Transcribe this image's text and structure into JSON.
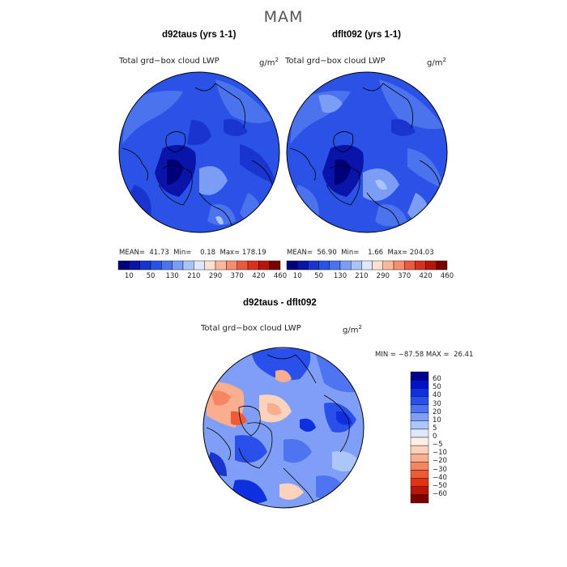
{
  "figure": {
    "title": "MAM"
  },
  "panels": [
    {
      "case_title": "d92taus (yrs 1-1)",
      "var_label": "Total grd−box cloud LWP",
      "units": "g/m",
      "units_exp": "2",
      "stats": "MEAN=  41.73  Min=    0.18  Max= 178.19"
    },
    {
      "case_title": "dflt092 (yrs 1-1)",
      "var_label": "Total grd−box cloud LWP",
      "units": "g/m",
      "units_exp": "2",
      "stats": "MEAN=  56.90  Min=    1.66  Max= 204.03"
    }
  ],
  "colorbar_abs": {
    "colors": [
      "#00007a",
      "#0a14a8",
      "#1a34d0",
      "#2a52e6",
      "#4b73ee",
      "#7b9df5",
      "#aac4fa",
      "#dde8fd",
      "#fde2d4",
      "#f9b79c",
      "#f58d6e",
      "#ea5a3f",
      "#d8311d",
      "#b81608",
      "#7a0000"
    ],
    "tick_labels": [
      "10",
      "50",
      "130",
      "210",
      "290",
      "370",
      "420",
      "460"
    ]
  },
  "diff_panel": {
    "case_title": "d92taus - dflt092",
    "var_label": "Total grd−box cloud LWP",
    "units": "g/m",
    "units_exp": "2",
    "stats": "MIN = −87.58 MAX =  26.41"
  },
  "colorbar_diff": {
    "colors": [
      "#000090",
      "#0012c8",
      "#0f30e0",
      "#2a50ec",
      "#4f74f2",
      "#7f9ff6",
      "#adc6fa",
      "#dbe8fe",
      "#fdf1e6",
      "#fbd3bd",
      "#f8ae8f",
      "#f58662",
      "#f05b37",
      "#e03214",
      "#b81608",
      "#7d0000"
    ],
    "labels": [
      "60",
      "50",
      "40",
      "30",
      "20",
      "10",
      "5",
      "0",
      "−5",
      "−10",
      "−20",
      "−30",
      "−40",
      "−50",
      "−60"
    ]
  }
}
